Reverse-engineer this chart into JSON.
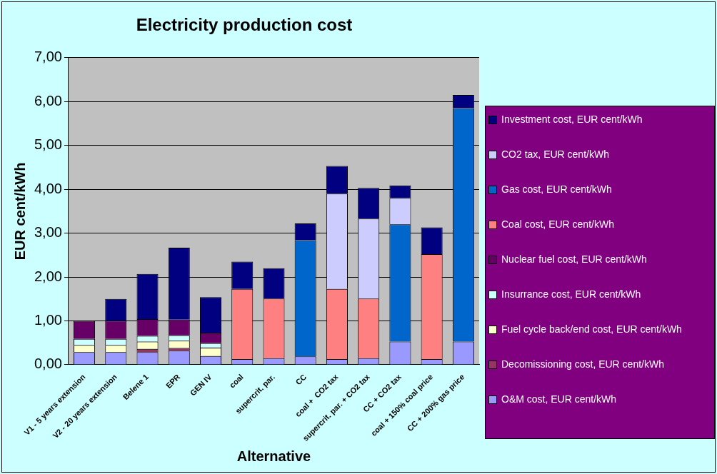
{
  "chart_data": {
    "type": "bar",
    "stacked": true,
    "title": "Electricity production cost",
    "xlabel": "Alternative",
    "ylabel": "EUR cent/kWh",
    "categories": [
      "V1 - 5 years extension",
      "V2 - 20 years extension",
      "Belene 1",
      "EPR",
      "GEN IV",
      "coal",
      "supercrit. par.",
      "CC",
      "coal +  CO2 tax",
      "supercrit. par. + CO2 tax",
      "CC + CO2 tax",
      "coal + 150% coal price",
      "CC + 200% gas price"
    ],
    "ylim": [
      0,
      7
    ],
    "yticks": [
      {
        "value": 0,
        "label": "0,00"
      },
      {
        "value": 1,
        "label": "1,00"
      },
      {
        "value": 2,
        "label": "2,00"
      },
      {
        "value": 3,
        "label": "3,00"
      },
      {
        "value": 4,
        "label": "4,00"
      },
      {
        "value": 5,
        "label": "5,00"
      },
      {
        "value": 6,
        "label": "6,00"
      },
      {
        "value": 7,
        "label": "7,00"
      }
    ],
    "grid": "y",
    "legend": "right",
    "series": [
      {
        "name": "O&M cost, EUR cent/kWh",
        "color": "#9999ff",
        "values": [
          0.29,
          0.29,
          0.29,
          0.32,
          0.2,
          0.13,
          0.15,
          0.19,
          0.13,
          0.15,
          0.53,
          0.13,
          0.53
        ]
      },
      {
        "name": "Decomissioning cost, EUR cent/kWh",
        "color": "#993366",
        "values": [
          0,
          0,
          0.07,
          0.06,
          0,
          0,
          0,
          0,
          0,
          0,
          0,
          0,
          0
        ]
      },
      {
        "name": "Fuel cycle back/end cost, EUR cent/kWh",
        "color": "#ffffcc",
        "values": [
          0.16,
          0.16,
          0.17,
          0.17,
          0.19,
          0,
          0,
          0,
          0,
          0,
          0,
          0,
          0
        ]
      },
      {
        "name": "Insurrance cost, EUR cent/kWh",
        "color": "#ccffff",
        "values": [
          0.14,
          0.14,
          0.13,
          0.12,
          0.1,
          0,
          0,
          0,
          0,
          0,
          0,
          0,
          0
        ]
      },
      {
        "name": "Nuclear fuel cost, EUR cent/kWh",
        "color": "#660066",
        "values": [
          0.41,
          0.41,
          0.38,
          0.36,
          0.24,
          0,
          0,
          0,
          0,
          0,
          0,
          0,
          0
        ]
      },
      {
        "name": "Coal cost, EUR cent/kWh",
        "color": "#ff8080",
        "values": [
          0,
          0,
          0,
          0,
          0,
          1.6,
          1.36,
          0,
          1.6,
          1.36,
          0,
          2.39,
          0
        ]
      },
      {
        "name": "Gas cost, EUR cent/kWh",
        "color": "#0066cc",
        "values": [
          0,
          0,
          0,
          0,
          0,
          0,
          0,
          2.65,
          0,
          0,
          2.67,
          0,
          5.32
        ]
      },
      {
        "name": "CO2 tax, EUR cent/kWh",
        "color": "#ccccff",
        "values": [
          0,
          0,
          0,
          0,
          0,
          0,
          0,
          0,
          2.17,
          1.82,
          0.6,
          0,
          0
        ]
      },
      {
        "name": "Investment cost, EUR cent/kWh",
        "color": "#000080",
        "values": [
          0,
          0.5,
          1.03,
          1.64,
          0.81,
          0.62,
          0.69,
          0.38,
          0.63,
          0.7,
          0.29,
          0.61,
          0.3
        ]
      }
    ]
  }
}
